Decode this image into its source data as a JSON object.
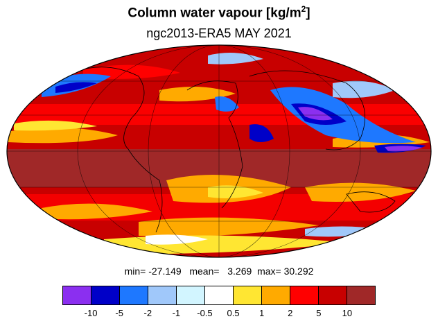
{
  "title": {
    "main": "Column water vapour [kg/m",
    "superscript": "2",
    "close": "]"
  },
  "subtitle": "ngc2013-ERA5  MAY 2021",
  "stats": {
    "min_label": "min=",
    "min_value": "-27.149",
    "mean_label": "mean=",
    "mean_value": "3.269",
    "max_label": "max=",
    "max_value": "30.292"
  },
  "colorbar": {
    "colors": [
      "#8b2ff0",
      "#0000c8",
      "#1e78ff",
      "#a0c8fa",
      "#d2f5ff",
      "#ffffff",
      "#ffe632",
      "#ffaa00",
      "#ff0000",
      "#c80000",
      "#a02828"
    ],
    "ticks": [
      "-10",
      "-5",
      "-2",
      "-1",
      "-0.5",
      "0.5",
      "1",
      "2",
      "5",
      "10"
    ]
  },
  "map": {
    "projection": "mollweide",
    "background_color": "#c80000",
    "dark_band_color": "#a02828",
    "grid": true
  }
}
